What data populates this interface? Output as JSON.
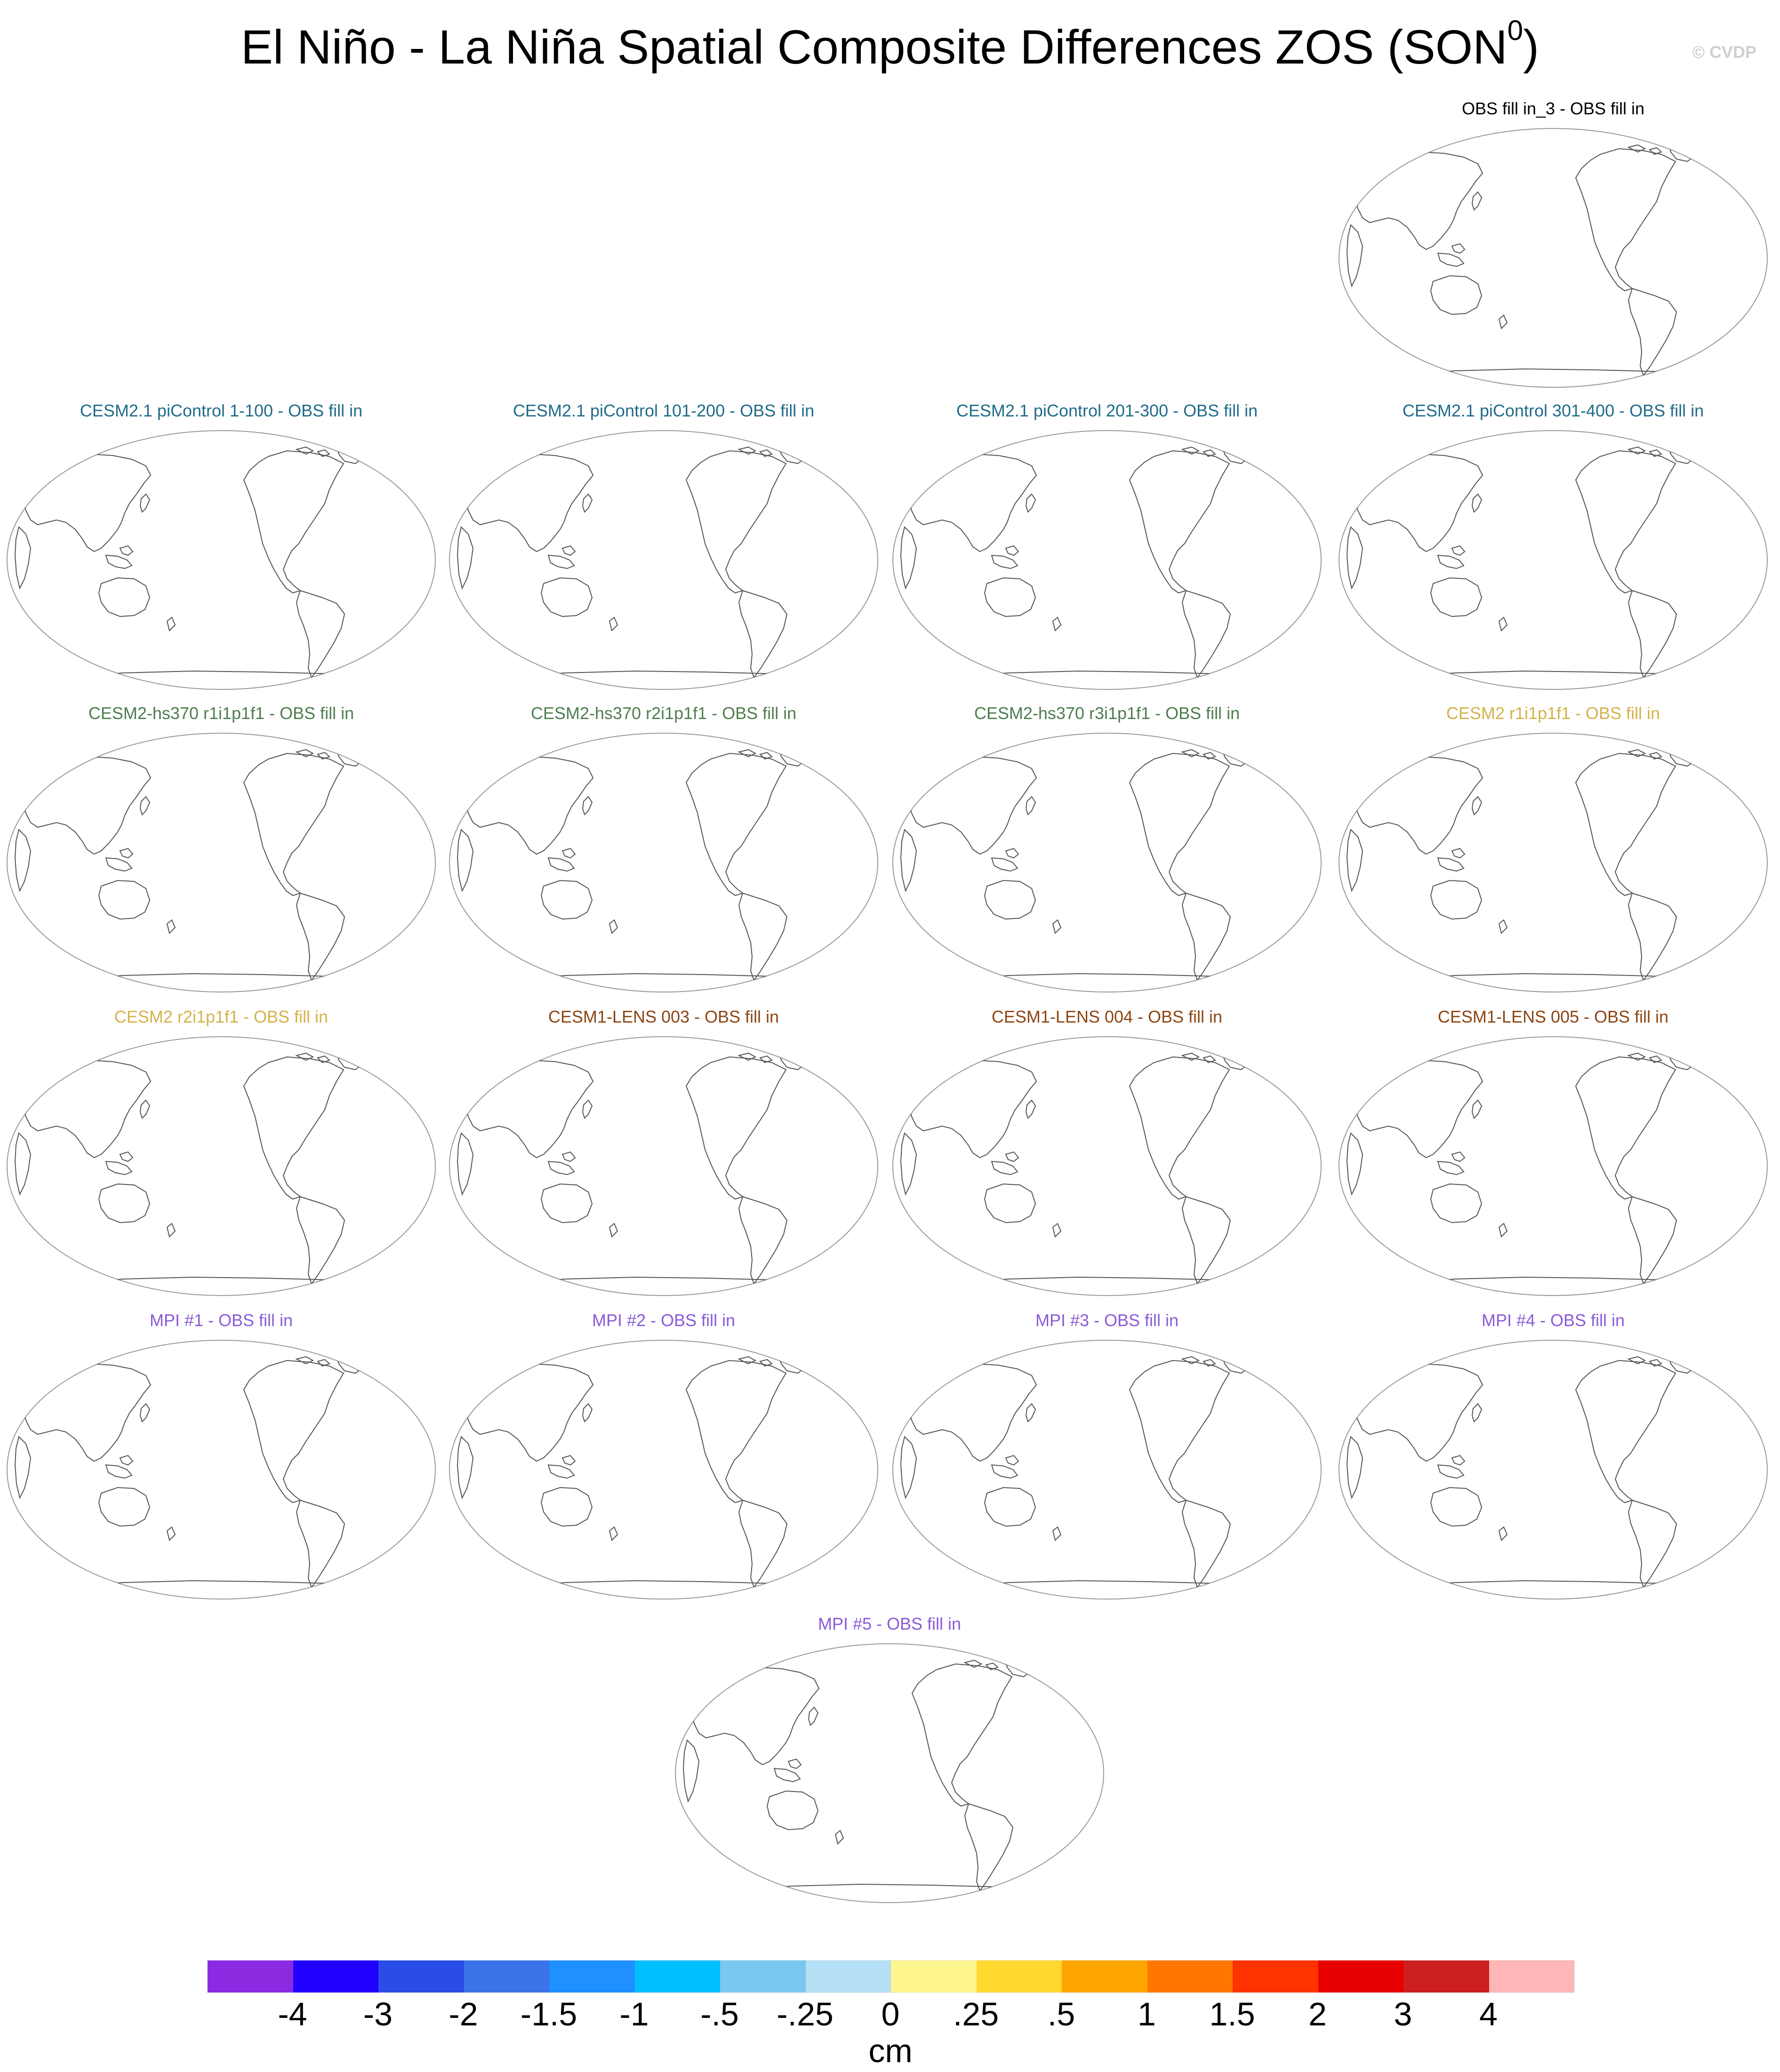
{
  "figure": {
    "title_main": "El Niño - La Niña Spatial Composite Differences ZOS (SON",
    "title_superscript": "0",
    "title_close": ")",
    "credit": "© CVDP"
  },
  "panels": [
    {
      "id": "obs",
      "title": "OBS fill in_3 - OBS fill in",
      "color": "#000000"
    },
    {
      "id": "cesm21-pi-1",
      "title": "CESM2.1 piControl 1-100 - OBS fill in",
      "color": "#1f6b8a"
    },
    {
      "id": "cesm21-pi-2",
      "title": "CESM2.1 piControl 101-200 - OBS fill in",
      "color": "#1f6b8a"
    },
    {
      "id": "cesm21-pi-3",
      "title": "CESM2.1 piControl 201-300 - OBS fill in",
      "color": "#1f6b8a"
    },
    {
      "id": "cesm21-pi-4",
      "title": "CESM2.1 piControl 301-400 - OBS fill in",
      "color": "#1f6b8a"
    },
    {
      "id": "cesm2-hs370-1",
      "title": "CESM2-hs370 r1i1p1f1 - OBS fill in",
      "color": "#4e7d4e"
    },
    {
      "id": "cesm2-hs370-2",
      "title": "CESM2-hs370 r2i1p1f1 - OBS fill in",
      "color": "#4e7d4e"
    },
    {
      "id": "cesm2-hs370-3",
      "title": "CESM2-hs370 r3i1p1f1 - OBS fill in",
      "color": "#4e7d4e"
    },
    {
      "id": "cesm2-r1",
      "title": "CESM2 r1i1p1f1 - OBS fill in",
      "color": "#d4b24a"
    },
    {
      "id": "cesm2-r2",
      "title": "CESM2 r2i1p1f1 - OBS fill in",
      "color": "#d4b24a"
    },
    {
      "id": "cesm1-lens-003",
      "title": "CESM1-LENS 003 - OBS fill in",
      "color": "#8b4513"
    },
    {
      "id": "cesm1-lens-004",
      "title": "CESM1-LENS 004 - OBS fill in",
      "color": "#8b4513"
    },
    {
      "id": "cesm1-lens-005",
      "title": "CESM1-LENS 005 - OBS fill in",
      "color": "#8b4513"
    },
    {
      "id": "mpi-1",
      "title": "MPI #1 - OBS fill in",
      "color": "#8a5bd6"
    },
    {
      "id": "mpi-2",
      "title": "MPI #2 - OBS fill in",
      "color": "#8a5bd6"
    },
    {
      "id": "mpi-3",
      "title": "MPI #3 - OBS fill in",
      "color": "#8a5bd6"
    },
    {
      "id": "mpi-4",
      "title": "MPI #4 - OBS fill in",
      "color": "#8a5bd6"
    },
    {
      "id": "mpi-5",
      "title": "MPI #5 - OBS fill in",
      "color": "#8a5bd6"
    }
  ],
  "colorbar": {
    "colors": [
      "#8a2be2",
      "#2200ff",
      "#2a4de8",
      "#3a74e8",
      "#1e90ff",
      "#00bfff",
      "#7ac8f0",
      "#b5e0f5",
      "#fff68f",
      "#ffd92f",
      "#ffa500",
      "#ff7600",
      "#ff3300",
      "#e60000",
      "#cc1f1f",
      "#ffb6b6"
    ],
    "labels": [
      "-4",
      "-3",
      "-2",
      "-1.5",
      "-1",
      "-.5",
      "-.25",
      "0",
      ".25",
      ".5",
      "1",
      "1.5",
      "2",
      "3",
      "4"
    ],
    "units": "cm"
  }
}
